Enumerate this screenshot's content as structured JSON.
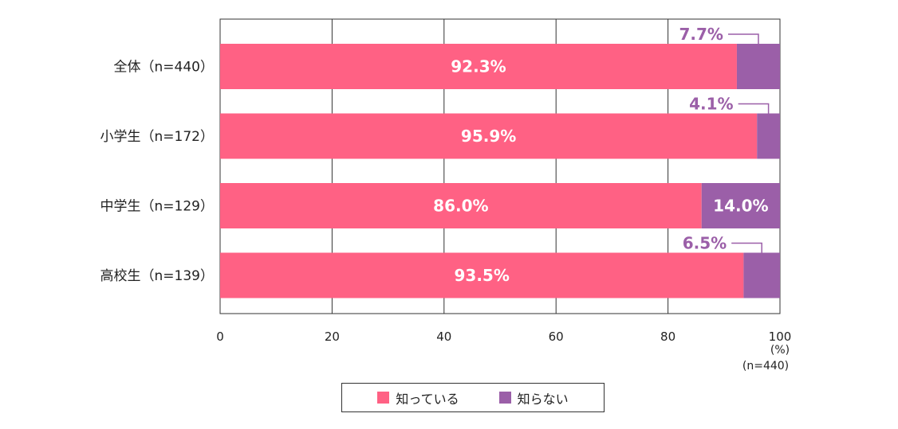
{
  "chart_data": {
    "type": "bar",
    "orientation": "horizontal",
    "stacked": true,
    "categories": [
      "全体（n=440）",
      "小学生（n=172）",
      "中学生（n=129）",
      "高校生（n=139）"
    ],
    "series": [
      {
        "name": "知っている",
        "color": "#ff6184",
        "values": [
          92.3,
          95.9,
          86.0,
          93.5
        ],
        "labels": [
          "92.3%",
          "95.9%",
          "86.0%",
          "93.5%"
        ]
      },
      {
        "name": "知らない",
        "color": "#9b5fa8",
        "values": [
          7.7,
          4.1,
          14.0,
          6.5
        ],
        "labels": [
          "7.7%",
          "4.1%",
          "14.0%",
          "6.5%"
        ]
      }
    ],
    "xlim": [
      0,
      100
    ],
    "xticks": [
      "0",
      "20",
      "40",
      "60",
      "80",
      "100"
    ],
    "unit_label": "(%)",
    "n_label": "(n=440)",
    "grid": true,
    "legend_position": "bottom"
  }
}
